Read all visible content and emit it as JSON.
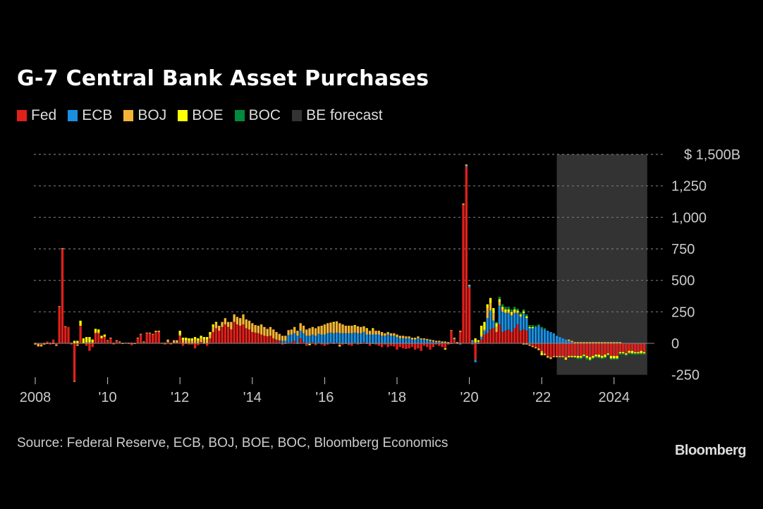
{
  "chart_data": {
    "type": "bar",
    "stacked": true,
    "title": "G-7 Central Bank Asset Purchases",
    "ylabel": "",
    "xlabel": "",
    "ylim": [
      -250,
      1500
    ],
    "y_ticks": [
      1500,
      1250,
      1000,
      750,
      500,
      250,
      0,
      -250
    ],
    "y_tick_labels": [
      "$ 1,500B",
      "1,250",
      "1,000",
      "750",
      "500",
      "250",
      "0",
      "-250"
    ],
    "x_ticks": [
      2008,
      2010,
      2012,
      2014,
      2016,
      2018,
      2020,
      2022,
      2024
    ],
    "x_tick_labels": [
      "2008",
      "'10",
      "'12",
      "'14",
      "'16",
      "'18",
      "'20",
      "'22",
      "2024"
    ],
    "frequency": "monthly",
    "start": "2008-01",
    "forecast_range": [
      "2022-06",
      "2024-12"
    ],
    "legend_position": "top-left",
    "legend": [
      {
        "name": "Fed",
        "color": "#e0201b"
      },
      {
        "name": "ECB",
        "color": "#1a8fe0"
      },
      {
        "name": "BOJ",
        "color": "#f5b335"
      },
      {
        "name": "BOE",
        "color": "#ffff00"
      },
      {
        "name": "BOC",
        "color": "#008b3e"
      },
      {
        "name": "BE forecast",
        "color": "#333333"
      }
    ],
    "series": [
      {
        "name": "Fed",
        "values": [
          5,
          -5,
          -10,
          5,
          15,
          -10,
          30,
          -10,
          290,
          750,
          130,
          130,
          -10,
          -300,
          -10,
          140,
          0,
          -20,
          -60,
          -30,
          80,
          80,
          40,
          50,
          20,
          40,
          -10,
          20,
          10,
          5,
          0,
          -5,
          -15,
          5,
          40,
          70,
          10,
          80,
          80,
          70,
          90,
          90,
          0,
          -10,
          10,
          -10,
          5,
          5,
          60,
          -20,
          -5,
          -10,
          -10,
          -40,
          -15,
          10,
          -5,
          -20,
          40,
          90,
          120,
          100,
          130,
          150,
          130,
          110,
          170,
          150,
          140,
          150,
          120,
          110,
          90,
          85,
          80,
          70,
          60,
          55,
          60,
          40,
          30,
          20,
          -10,
          -5,
          5,
          10,
          20,
          -5,
          40,
          10,
          -20,
          -5,
          10,
          -15,
          5,
          -10,
          -20,
          -10,
          5,
          -5,
          5,
          -15,
          -10,
          -5,
          -15,
          -20,
          5,
          -10,
          -5,
          10,
          -5,
          -20,
          -5,
          -10,
          -20,
          -30,
          -10,
          -30,
          -20,
          -25,
          -50,
          -30,
          -40,
          -45,
          -40,
          -30,
          -50,
          -40,
          -60,
          -20,
          -30,
          -50,
          -30,
          -10,
          -20,
          -30,
          -40,
          -10,
          100,
          30,
          -5,
          90,
          1100,
          1400,
          440,
          -10,
          -130,
          -5,
          30,
          70,
          80,
          110,
          120,
          90,
          150,
          90,
          100,
          110,
          90,
          120,
          150,
          100,
          110,
          100,
          -10,
          -20,
          -30,
          -40,
          -60,
          -80,
          -100,
          -110,
          -100,
          -100,
          -100,
          -100,
          -110,
          -100,
          -100,
          -100,
          -100,
          -100,
          -90,
          -100,
          -110,
          -100,
          -90,
          -90,
          -100,
          -90,
          -80,
          -100,
          -100,
          -100,
          -70,
          -70,
          -80,
          -60,
          -60,
          -70,
          -70,
          -60,
          -70
        ]
      },
      {
        "name": "ECB",
        "values": [
          0,
          0,
          0,
          0,
          0,
          0,
          0,
          0,
          0,
          0,
          0,
          0,
          0,
          0,
          0,
          0,
          0,
          0,
          0,
          0,
          0,
          0,
          0,
          0,
          0,
          0,
          0,
          0,
          0,
          0,
          0,
          0,
          0,
          0,
          0,
          0,
          0,
          0,
          0,
          0,
          0,
          0,
          0,
          0,
          0,
          0,
          0,
          0,
          0,
          0,
          0,
          0,
          0,
          0,
          0,
          0,
          0,
          0,
          0,
          0,
          0,
          0,
          0,
          0,
          0,
          0,
          0,
          0,
          0,
          0,
          0,
          0,
          0,
          0,
          0,
          0,
          0,
          0,
          0,
          0,
          0,
          5,
          20,
          20,
          60,
          60,
          60,
          60,
          60,
          70,
          60,
          60,
          60,
          60,
          70,
          70,
          70,
          80,
          80,
          80,
          80,
          80,
          80,
          80,
          80,
          80,
          80,
          80,
          80,
          80,
          70,
          70,
          70,
          70,
          70,
          60,
          60,
          70,
          60,
          60,
          50,
          40,
          40,
          40,
          40,
          30,
          30,
          40,
          30,
          30,
          25,
          20,
          15,
          10,
          10,
          5,
          5,
          0,
          -5,
          5,
          0,
          -10,
          0,
          10,
          15,
          20,
          -20,
          10,
          20,
          30,
          120,
          150,
          60,
          0,
          150,
          160,
          140,
          130,
          130,
          120,
          90,
          110,
          130,
          100,
          120,
          120,
          130,
          140,
          120,
          110,
          100,
          90,
          80,
          60,
          50,
          40,
          30,
          20,
          10,
          0,
          0,
          0,
          0,
          0,
          0,
          0,
          0,
          0,
          0,
          0,
          0,
          0,
          0,
          0,
          0,
          0,
          0,
          0,
          0,
          0,
          0,
          0,
          0,
          0,
          0,
          0,
          0,
          0,
          0,
          0,
          0,
          0
        ]
      },
      {
        "name": "BOJ",
        "values": [
          -10,
          -20,
          -15,
          -10,
          -5,
          5,
          -5,
          -10,
          5,
          5,
          5,
          0,
          5,
          -5,
          -10,
          0,
          0,
          10,
          10,
          10,
          10,
          10,
          5,
          5,
          5,
          5,
          5,
          5,
          5,
          -5,
          5,
          5,
          5,
          -5,
          5,
          5,
          5,
          5,
          5,
          5,
          10,
          10,
          5,
          5,
          20,
          5,
          20,
          20,
          10,
          25,
          25,
          20,
          20,
          30,
          20,
          30,
          30,
          30,
          30,
          40,
          40,
          40,
          40,
          50,
          40,
          60,
          60,
          60,
          60,
          80,
          70,
          70,
          70,
          60,
          60,
          80,
          70,
          60,
          70,
          70,
          60,
          50,
          40,
          40,
          40,
          40,
          50,
          40,
          60,
          60,
          50,
          60,
          60,
          60,
          60,
          70,
          80,
          80,
          80,
          80,
          90,
          80,
          70,
          60,
          60,
          60,
          50,
          50,
          50,
          40,
          40,
          30,
          40,
          30,
          30,
          30,
          20,
          20,
          20,
          20,
          20,
          20,
          20,
          15,
          15,
          15,
          15,
          15,
          10,
          10,
          10,
          10,
          10,
          10,
          10,
          10,
          10,
          10,
          5,
          10,
          10,
          10,
          10,
          10,
          10,
          5,
          10,
          5,
          10,
          10,
          80,
          60,
          60,
          40,
          30,
          20,
          10,
          10,
          10,
          10,
          10,
          10,
          -10,
          -10,
          -10,
          -10,
          -10,
          -15,
          -15,
          -15,
          -15,
          -15,
          -10,
          -10,
          -10,
          -10,
          -10,
          10,
          10,
          10,
          10,
          10,
          10,
          10,
          10,
          10,
          10,
          10,
          10,
          10,
          10,
          10,
          10,
          10,
          10,
          0,
          0,
          0,
          0,
          0,
          0,
          0,
          0,
          0,
          0,
          0,
          0,
          0,
          0
        ]
      },
      {
        "name": "BOE",
        "values": [
          0,
          0,
          0,
          0,
          0,
          0,
          0,
          0,
          0,
          0,
          0,
          0,
          0,
          20,
          20,
          40,
          40,
          40,
          40,
          20,
          25,
          20,
          15,
          15,
          0,
          0,
          0,
          0,
          0,
          0,
          0,
          0,
          0,
          0,
          0,
          0,
          0,
          0,
          0,
          0,
          0,
          0,
          0,
          0,
          0,
          0,
          0,
          0,
          30,
          20,
          20,
          20,
          20,
          20,
          20,
          20,
          20,
          20,
          20,
          20,
          10,
          0,
          0,
          0,
          0,
          0,
          0,
          0,
          0,
          0,
          0,
          0,
          0,
          0,
          0,
          0,
          0,
          0,
          0,
          0,
          0,
          0,
          0,
          0,
          0,
          0,
          0,
          0,
          0,
          0,
          0,
          -10,
          0,
          0,
          0,
          0,
          0,
          0,
          0,
          10,
          0,
          -10,
          0,
          0,
          0,
          0,
          10,
          5,
          0,
          5,
          10,
          0,
          10,
          0,
          0,
          0,
          0,
          0,
          0,
          0,
          0,
          0,
          0,
          0,
          0,
          0,
          0,
          0,
          0,
          0,
          0,
          0,
          0,
          0,
          0,
          0,
          -10,
          0,
          0,
          0,
          0,
          0,
          0,
          0,
          0,
          0,
          30,
          10,
          80,
          60,
          30,
          40,
          40,
          30,
          20,
          20,
          20,
          20,
          20,
          20,
          10,
          10,
          15,
          15,
          10,
          10,
          0,
          0,
          -20,
          0,
          0,
          0,
          0,
          0,
          0,
          0,
          -10,
          -10,
          -10,
          -10,
          -15,
          -15,
          -10,
          -15,
          -20,
          -15,
          -15,
          -20,
          -15,
          -20,
          -10,
          -20,
          -20,
          -20,
          -10,
          -10,
          -10,
          -15,
          -20,
          -10,
          -10,
          -20,
          -10,
          -10,
          -15,
          -10,
          -10,
          -20,
          -20,
          -10,
          -10
        ]
      },
      {
        "name": "BOC",
        "values": [
          0,
          0,
          0,
          0,
          0,
          0,
          0,
          0,
          0,
          0,
          0,
          0,
          0,
          0,
          0,
          0,
          0,
          0,
          0,
          0,
          0,
          0,
          0,
          0,
          0,
          0,
          0,
          0,
          0,
          0,
          0,
          0,
          0,
          0,
          0,
          0,
          0,
          0,
          0,
          0,
          0,
          0,
          0,
          0,
          0,
          0,
          0,
          0,
          0,
          0,
          0,
          0,
          0,
          0,
          0,
          0,
          0,
          0,
          0,
          0,
          0,
          0,
          0,
          0,
          0,
          0,
          0,
          0,
          0,
          0,
          0,
          0,
          0,
          0,
          0,
          0,
          0,
          0,
          0,
          0,
          0,
          0,
          0,
          0,
          0,
          0,
          0,
          0,
          0,
          0,
          0,
          0,
          0,
          0,
          0,
          0,
          0,
          0,
          0,
          0,
          0,
          0,
          0,
          0,
          0,
          0,
          0,
          0,
          0,
          0,
          0,
          0,
          0,
          0,
          0,
          0,
          0,
          0,
          0,
          0,
          0,
          0,
          0,
          0,
          0,
          0,
          0,
          0,
          0,
          0,
          0,
          0,
          0,
          0,
          0,
          0,
          0,
          0,
          0,
          0,
          0,
          0,
          0,
          0,
          0,
          0,
          0,
          0,
          0,
          0,
          0,
          0,
          0,
          10,
          20,
          20,
          20,
          20,
          20,
          20,
          15,
          15,
          15,
          15,
          15,
          15,
          10,
          10,
          10,
          10,
          0,
          0,
          0,
          0,
          0,
          0,
          0,
          0,
          0,
          -5,
          -10,
          -10,
          -10,
          -15,
          -10,
          -10,
          -10,
          -10,
          -10,
          -10,
          -10,
          -10,
          -10,
          -10,
          -10,
          -10,
          -10,
          -10,
          -10,
          -10,
          -10,
          -10,
          -10,
          -10,
          -10,
          -10,
          -10,
          -10,
          -10,
          -10,
          -10,
          -10,
          -10
        ]
      }
    ]
  },
  "title": "G-7 Central Bank Asset Purchases",
  "source": "Source: Federal Reserve, ECB, BOJ, BOE, BOC, Bloomberg Economics",
  "brand": "Bloomberg"
}
